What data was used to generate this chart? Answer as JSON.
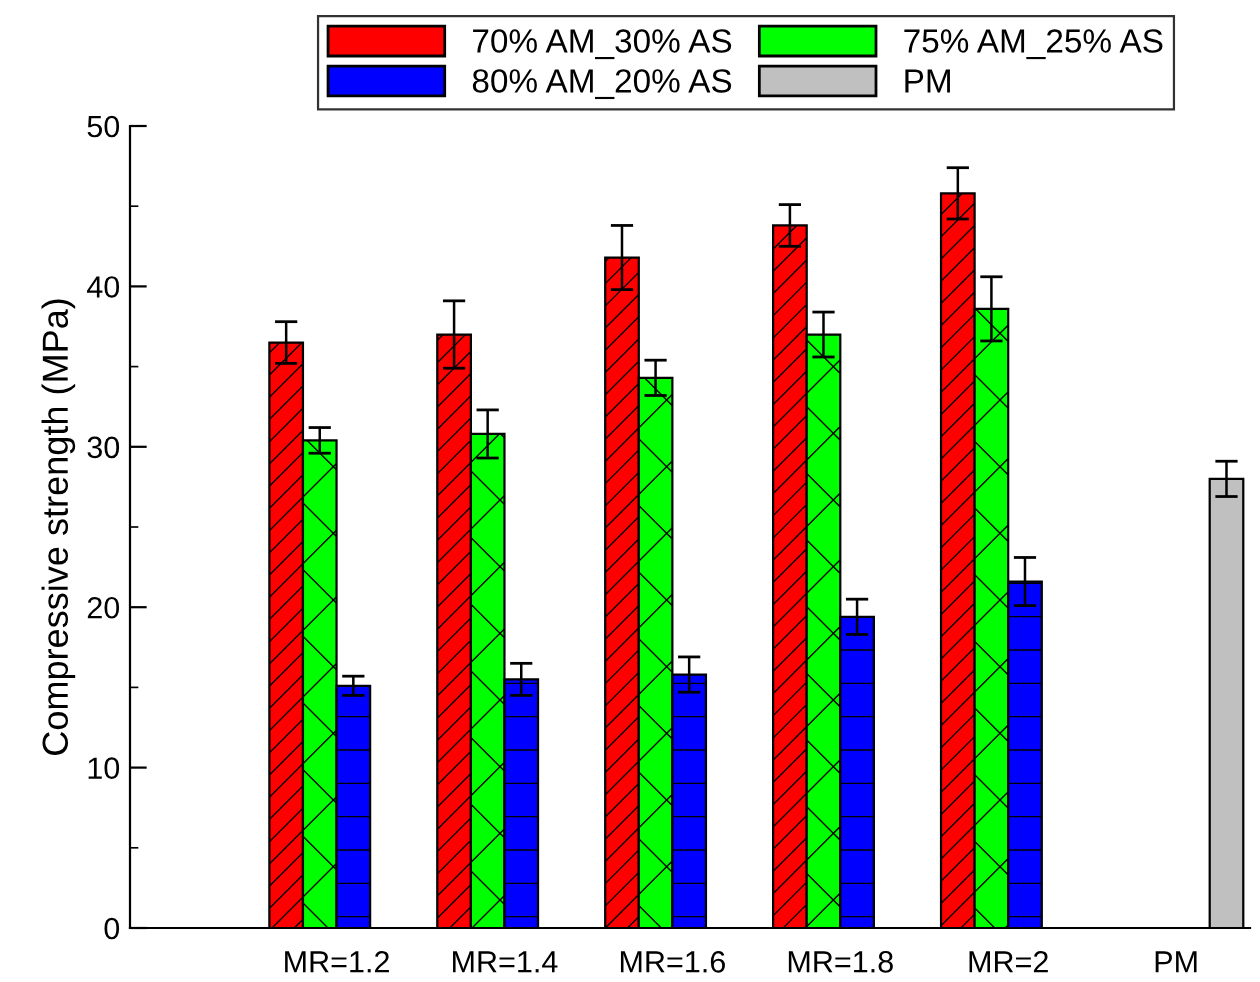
{
  "chart_data": {
    "type": "bar",
    "ylabel": "Compressive strength (MPa)",
    "categories": [
      "MR=1.2",
      "MR=1.4",
      "MR=1.6",
      "MR=1.8",
      "MR=2",
      "PM"
    ],
    "series": [
      {
        "name": "70% AM_30% AS",
        "color": "#ff0000",
        "values": [
          36.5,
          37.0,
          41.8,
          43.8,
          45.8,
          null
        ],
        "errors": [
          1.3,
          2.1,
          2.0,
          1.3,
          1.6,
          null
        ]
      },
      {
        "name": "75% AM_25% AS",
        "color": "#00ff00",
        "values": [
          30.4,
          30.8,
          34.3,
          37.0,
          38.6,
          null
        ],
        "errors": [
          0.8,
          1.5,
          1.1,
          1.4,
          2.0,
          null
        ]
      },
      {
        "name": "80% AM_20% AS",
        "color": "#0000ff",
        "values": [
          15.1,
          15.5,
          15.8,
          19.4,
          21.6,
          null
        ],
        "errors": [
          0.6,
          1.0,
          1.1,
          1.1,
          1.5,
          null
        ]
      },
      {
        "name": "PM",
        "color": "#c0c0c0",
        "values": [
          null,
          null,
          null,
          null,
          null,
          28.0
        ],
        "errors": [
          null,
          null,
          null,
          null,
          null,
          1.1
        ]
      }
    ],
    "ylim": [
      0,
      50
    ],
    "yticks": [
      0,
      10,
      20,
      30,
      40,
      50
    ],
    "legend": "top",
    "grid": false
  }
}
